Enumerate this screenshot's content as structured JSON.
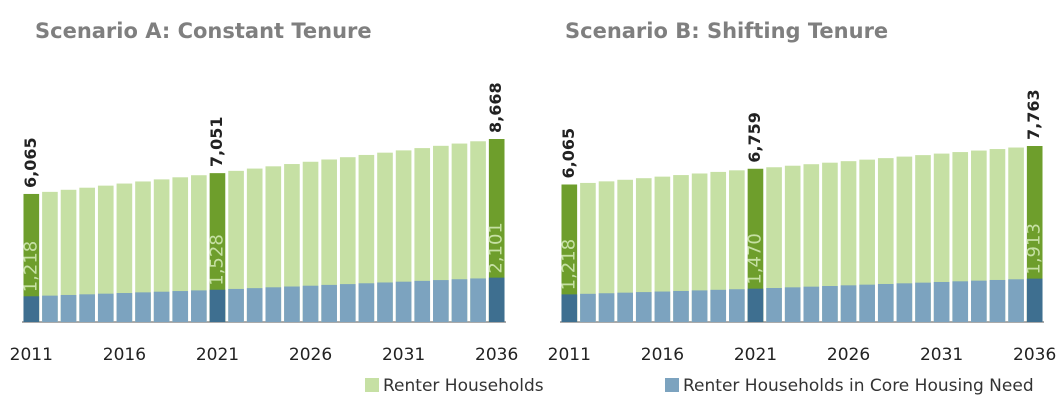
{
  "chart_data": [
    {
      "type": "bar",
      "title": "Scenario A: Constant Tenure",
      "categories": [
        "2011",
        null,
        null,
        null,
        null,
        "2016",
        null,
        null,
        null,
        null,
        "2021",
        null,
        null,
        null,
        null,
        "2026",
        null,
        null,
        null,
        null,
        "2031",
        null,
        null,
        null,
        null,
        "2036"
      ],
      "series": [
        {
          "name": "Renter Households",
          "color": "#c6e0a4",
          "highlight_color": "#6e9e2c",
          "values": [
            6065,
            6164,
            6262,
            6361,
            6459,
            6558,
            6657,
            6755,
            6854,
            6952,
            7051,
            7159,
            7267,
            7374,
            7482,
            7590,
            7698,
            7806,
            7913,
            8021,
            8129,
            8237,
            8345,
            8452,
            8560,
            8668
          ],
          "value_labels": [
            "6,065",
            null,
            null,
            null,
            null,
            null,
            null,
            null,
            null,
            null,
            "7,051",
            null,
            null,
            null,
            null,
            null,
            null,
            null,
            null,
            null,
            null,
            null,
            null,
            null,
            null,
            "8,668"
          ]
        },
        {
          "name": "Renter Households in Core Housing Need",
          "color": "#7ca3bf",
          "highlight_color": "#3e6f90",
          "values": [
            1218,
            1249,
            1280,
            1311,
            1342,
            1373,
            1404,
            1435,
            1466,
            1497,
            1528,
            1566,
            1604,
            1643,
            1681,
            1719,
            1757,
            1795,
            1834,
            1872,
            1910,
            1948,
            1986,
            2025,
            2063,
            2101
          ],
          "value_labels": [
            "1,218",
            null,
            null,
            null,
            null,
            null,
            null,
            null,
            null,
            null,
            "1,528",
            null,
            null,
            null,
            null,
            null,
            null,
            null,
            null,
            null,
            null,
            null,
            null,
            null,
            null,
            "2,101"
          ]
        }
      ]
    },
    {
      "type": "bar",
      "title": "Scenario B: Shifting Tenure",
      "categories": [
        "2011",
        null,
        null,
        null,
        null,
        "2016",
        null,
        null,
        null,
        null,
        "2021",
        null,
        null,
        null,
        null,
        "2026",
        null,
        null,
        null,
        null,
        "2031",
        null,
        null,
        null,
        null,
        "2036"
      ],
      "series": [
        {
          "name": "Renter Households",
          "color": "#c6e0a4",
          "highlight_color": "#6e9e2c",
          "values": [
            6065,
            6134,
            6204,
            6273,
            6343,
            6412,
            6481,
            6551,
            6620,
            6690,
            6759,
            6826,
            6893,
            6960,
            7027,
            7094,
            7161,
            7228,
            7295,
            7361,
            7428,
            7495,
            7562,
            7629,
            7696,
            7763
          ],
          "value_labels": [
            "6,065",
            null,
            null,
            null,
            null,
            null,
            null,
            null,
            null,
            null,
            "6,759",
            null,
            null,
            null,
            null,
            null,
            null,
            null,
            null,
            null,
            null,
            null,
            null,
            null,
            null,
            "7,763"
          ]
        },
        {
          "name": "Renter Households in Core Housing Need",
          "color": "#7ca3bf",
          "highlight_color": "#3e6f90",
          "values": [
            1218,
            1243,
            1268,
            1294,
            1319,
            1344,
            1369,
            1394,
            1420,
            1445,
            1470,
            1500,
            1529,
            1559,
            1588,
            1618,
            1647,
            1677,
            1706,
            1736,
            1765,
            1795,
            1824,
            1854,
            1883,
            1913
          ],
          "value_labels": [
            "1,218",
            null,
            null,
            null,
            null,
            null,
            null,
            null,
            null,
            null,
            "1,470",
            null,
            null,
            null,
            null,
            null,
            null,
            null,
            null,
            null,
            null,
            null,
            null,
            null,
            null,
            "1,913"
          ]
        }
      ]
    }
  ]
}
